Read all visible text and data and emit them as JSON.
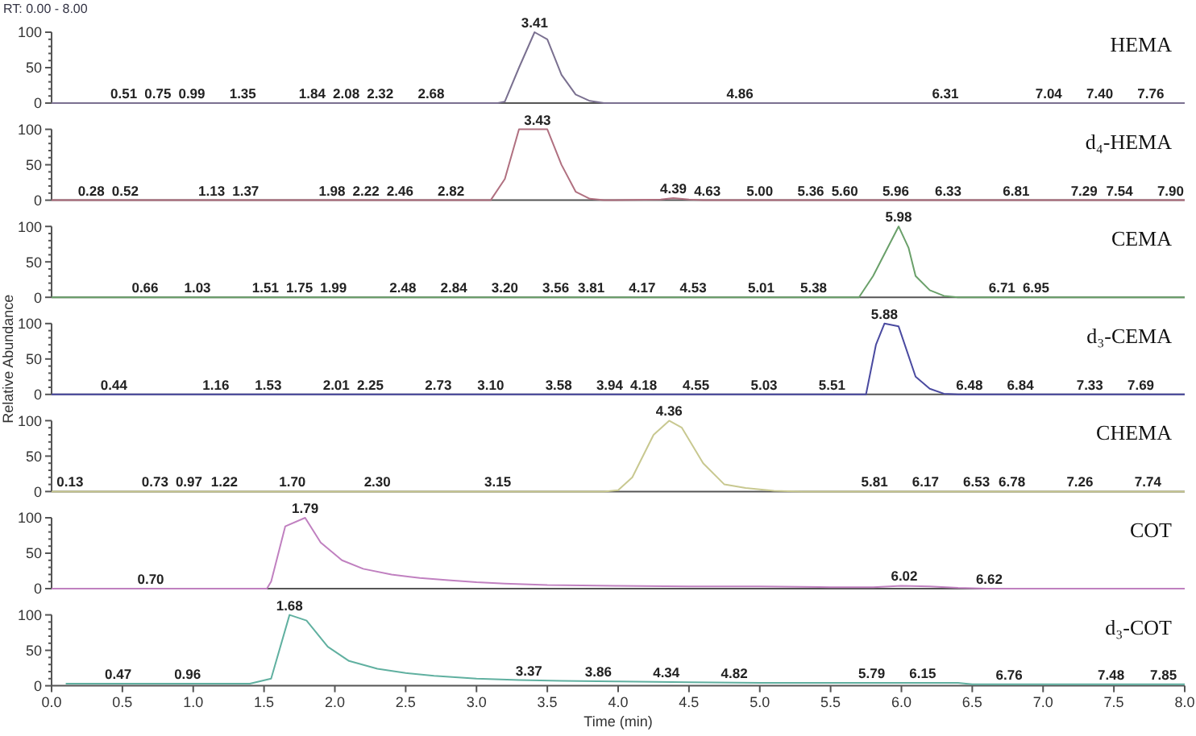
{
  "chart_data": [
    {
      "type": "line",
      "title": "HEMA",
      "xlim": [
        0,
        8
      ],
      "ylim": [
        0,
        100
      ],
      "tick_labels": "y",
      "yticks": [
        0,
        {
          "value": 10,
          "label": null
        },
        {
          "value": 20,
          "label": null
        },
        {
          "value": 30,
          "label": null
        },
        {
          "value": 40,
          "label": null
        },
        50,
        {
          "value": 60,
          "label": null
        },
        {
          "value": 70,
          "label": null
        },
        {
          "value": 80,
          "label": null
        },
        {
          "value": 90,
          "label": null
        },
        100
      ],
      "marker": "none",
      "line_style": "solid",
      "series": [
        {
          "color": "#7a7090",
          "x": [
            0,
            3.15,
            3.2,
            3.3,
            3.41,
            3.5,
            3.6,
            3.7,
            3.8,
            3.9,
            8
          ],
          "values": [
            0,
            0,
            2,
            50,
            100,
            90,
            40,
            12,
            3,
            0,
            0
          ]
        }
      ],
      "annotations": [
        "RT: 0.00 - 8.00",
        {
          "text": "0.51",
          "x": 0.51,
          "y": 0
        },
        {
          "text": "0.75",
          "x": 0.75,
          "y": 0
        },
        {
          "text": "0.99",
          "x": 0.99,
          "y": 0
        },
        {
          "text": "1.35",
          "x": 1.35,
          "y": 0
        },
        {
          "text": "1.84",
          "x": 1.84,
          "y": 0
        },
        {
          "text": "2.08",
          "x": 2.08,
          "y": 0
        },
        {
          "text": "2.32",
          "x": 2.32,
          "y": 0
        },
        {
          "text": "2.68",
          "x": 2.68,
          "y": 0
        },
        {
          "text": "3.41",
          "x": 3.41,
          "y": 100
        },
        {
          "text": "4.86",
          "x": 4.86,
          "y": 0
        },
        {
          "text": "6.31",
          "x": 6.31,
          "y": 0
        },
        {
          "text": "7.04",
          "x": 7.04,
          "y": 0
        },
        {
          "text": "7.40",
          "x": 7.4,
          "y": 0
        },
        {
          "text": "7.76",
          "x": 7.76,
          "y": 0
        }
      ]
    },
    {
      "type": "line",
      "title": "d₄-HEMA",
      "xlim": [
        0,
        8
      ],
      "ylim": [
        0,
        100
      ],
      "tick_labels": "y",
      "yticks": [
        0,
        {
          "value": 10,
          "label": null
        },
        {
          "value": 20,
          "label": null
        },
        {
          "value": 30,
          "label": null
        },
        {
          "value": 40,
          "label": null
        },
        50,
        {
          "value": 60,
          "label": null
        },
        {
          "value": 70,
          "label": null
        },
        {
          "value": 80,
          "label": null
        },
        {
          "value": 90,
          "label": null
        },
        100
      ],
      "marker": "none",
      "line_style": "solid",
      "series": [
        {
          "color": "#b07080",
          "x": [
            0,
            3.1,
            3.2,
            3.3,
            3.43,
            3.5,
            3.6,
            3.7,
            3.8,
            3.9,
            4.3,
            4.39,
            4.5,
            4.6,
            8
          ],
          "values": [
            0,
            0,
            30,
            100,
            100,
            100,
            50,
            12,
            2,
            0,
            1,
            3,
            1,
            0,
            0
          ]
        }
      ],
      "annotations": [
        {
          "text": "0.28",
          "x": 0.28,
          "y": 0
        },
        {
          "text": "0.52",
          "x": 0.52,
          "y": 0
        },
        {
          "text": "1.13",
          "x": 1.13,
          "y": 0
        },
        {
          "text": "1.37",
          "x": 1.37,
          "y": 0
        },
        {
          "text": "1.98",
          "x": 1.98,
          "y": 0
        },
        {
          "text": "2.22",
          "x": 2.22,
          "y": 0
        },
        {
          "text": "2.46",
          "x": 2.46,
          "y": 0
        },
        {
          "text": "2.82",
          "x": 2.82,
          "y": 0
        },
        {
          "text": "3.43",
          "x": 3.43,
          "y": 100
        },
        {
          "text": "4.39",
          "x": 4.39,
          "y": 3
        },
        {
          "text": "4.63",
          "x": 4.63,
          "y": 0
        },
        {
          "text": "5.00",
          "x": 5.0,
          "y": 0
        },
        {
          "text": "5.36",
          "x": 5.36,
          "y": 0
        },
        {
          "text": "5.60",
          "x": 5.6,
          "y": 0
        },
        {
          "text": "5.96",
          "x": 5.96,
          "y": 0
        },
        {
          "text": "6.33",
          "x": 6.33,
          "y": 0
        },
        {
          "text": "6.81",
          "x": 6.81,
          "y": 0
        },
        {
          "text": "7.29",
          "x": 7.29,
          "y": 0
        },
        {
          "text": "7.54",
          "x": 7.54,
          "y": 0
        },
        {
          "text": "7.90",
          "x": 7.9,
          "y": 0
        }
      ]
    },
    {
      "type": "line",
      "title": "CEMA",
      "xlim": [
        0,
        8
      ],
      "ylim": [
        0,
        100
      ],
      "tick_labels": "y",
      "yticks": [
        0,
        {
          "value": 10,
          "label": null
        },
        {
          "value": 20,
          "label": null
        },
        {
          "value": 30,
          "label": null
        },
        {
          "value": 40,
          "label": null
        },
        50,
        {
          "value": 60,
          "label": null
        },
        {
          "value": 70,
          "label": null
        },
        {
          "value": 80,
          "label": null
        },
        {
          "value": 90,
          "label": null
        },
        100
      ],
      "marker": "none",
      "line_style": "solid",
      "series": [
        {
          "color": "#6aa06a",
          "x": [
            0,
            5.7,
            5.8,
            5.98,
            6.05,
            6.1,
            6.2,
            6.3,
            6.4,
            8
          ],
          "values": [
            0,
            0,
            30,
            100,
            70,
            30,
            10,
            2,
            0,
            0
          ]
        }
      ],
      "annotations": [
        {
          "text": "0.66",
          "x": 0.66,
          "y": 0
        },
        {
          "text": "1.03",
          "x": 1.03,
          "y": 0
        },
        {
          "text": "1.51",
          "x": 1.51,
          "y": 0
        },
        {
          "text": "1.75",
          "x": 1.75,
          "y": 0
        },
        {
          "text": "1.99",
          "x": 1.99,
          "y": 0
        },
        {
          "text": "2.48",
          "x": 2.48,
          "y": 0
        },
        {
          "text": "2.84",
          "x": 2.84,
          "y": 0
        },
        {
          "text": "3.20",
          "x": 3.2,
          "y": 0
        },
        {
          "text": "3.56",
          "x": 3.56,
          "y": 0
        },
        {
          "text": "3.81",
          "x": 3.81,
          "y": 0
        },
        {
          "text": "4.17",
          "x": 4.17,
          "y": 0
        },
        {
          "text": "4.53",
          "x": 4.53,
          "y": 0
        },
        {
          "text": "5.01",
          "x": 5.01,
          "y": 0
        },
        {
          "text": "5.38",
          "x": 5.38,
          "y": 0
        },
        {
          "text": "5.98",
          "x": 5.98,
          "y": 100
        },
        {
          "text": "6.71",
          "x": 6.71,
          "y": 0
        },
        {
          "text": "6.95",
          "x": 6.95,
          "y": 0
        }
      ]
    },
    {
      "type": "line",
      "title": "d₃-CEMA",
      "ylabel": "Relative Abundance",
      "xlim": [
        0,
        8
      ],
      "ylim": [
        0,
        100
      ],
      "tick_labels": "y",
      "yticks": [
        0,
        {
          "value": 10,
          "label": null
        },
        {
          "value": 20,
          "label": null
        },
        {
          "value": 30,
          "label": null
        },
        {
          "value": 40,
          "label": null
        },
        50,
        {
          "value": 60,
          "label": null
        },
        {
          "value": 70,
          "label": null
        },
        {
          "value": 80,
          "label": null
        },
        {
          "value": 90,
          "label": null
        },
        100
      ],
      "marker": "none",
      "line_style": "solid",
      "series": [
        {
          "color": "#4a4aa0",
          "x": [
            0,
            5.75,
            5.82,
            5.88,
            5.98,
            6.1,
            6.2,
            6.3,
            6.4,
            8
          ],
          "values": [
            0,
            0,
            70,
            100,
            96,
            25,
            8,
            1,
            0,
            0
          ]
        }
      ],
      "annotations": [
        {
          "text": "0.44",
          "x": 0.44,
          "y": 0
        },
        {
          "text": "1.16",
          "x": 1.16,
          "y": 0
        },
        {
          "text": "1.53",
          "x": 1.53,
          "y": 0
        },
        {
          "text": "2.01",
          "x": 2.01,
          "y": 0
        },
        {
          "text": "2.25",
          "x": 2.25,
          "y": 0
        },
        {
          "text": "2.73",
          "x": 2.73,
          "y": 0
        },
        {
          "text": "3.10",
          "x": 3.1,
          "y": 0
        },
        {
          "text": "3.58",
          "x": 3.58,
          "y": 0
        },
        {
          "text": "3.94",
          "x": 3.94,
          "y": 0
        },
        {
          "text": "4.18",
          "x": 4.18,
          "y": 0
        },
        {
          "text": "4.55",
          "x": 4.55,
          "y": 0
        },
        {
          "text": "5.03",
          "x": 5.03,
          "y": 0
        },
        {
          "text": "5.51",
          "x": 5.51,
          "y": 0
        },
        {
          "text": "5.88",
          "x": 5.88,
          "y": 100
        },
        {
          "text": "6.48",
          "x": 6.48,
          "y": 0
        },
        {
          "text": "6.84",
          "x": 6.84,
          "y": 0
        },
        {
          "text": "7.33",
          "x": 7.33,
          "y": 0
        },
        {
          "text": "7.69",
          "x": 7.69,
          "y": 0
        }
      ]
    },
    {
      "type": "line",
      "title": "CHEMA",
      "xlim": [
        0,
        8
      ],
      "ylim": [
        0,
        100
      ],
      "tick_labels": "y",
      "yticks": [
        0,
        {
          "value": 10,
          "label": null
        },
        {
          "value": 20,
          "label": null
        },
        {
          "value": 30,
          "label": null
        },
        {
          "value": 40,
          "label": null
        },
        50,
        {
          "value": 60,
          "label": null
        },
        {
          "value": 70,
          "label": null
        },
        {
          "value": 80,
          "label": null
        },
        {
          "value": 90,
          "label": null
        },
        100
      ],
      "marker": "none",
      "line_style": "solid",
      "series": [
        {
          "color": "#c8c890",
          "x": [
            0,
            3.9,
            4.0,
            4.1,
            4.25,
            4.36,
            4.45,
            4.6,
            4.75,
            4.9,
            5.1,
            5.3,
            8
          ],
          "values": [
            0,
            0,
            2,
            20,
            80,
            100,
            90,
            40,
            10,
            5,
            1,
            0,
            0
          ]
        }
      ],
      "annotations": [
        {
          "text": "0.13",
          "x": 0.13,
          "y": 0
        },
        {
          "text": "0.73",
          "x": 0.73,
          "y": 0
        },
        {
          "text": "0.97",
          "x": 0.97,
          "y": 0
        },
        {
          "text": "1.22",
          "x": 1.22,
          "y": 0
        },
        {
          "text": "1.70",
          "x": 1.7,
          "y": 0
        },
        {
          "text": "2.30",
          "x": 2.3,
          "y": 0
        },
        {
          "text": "3.15",
          "x": 3.15,
          "y": 0
        },
        {
          "text": "4.36",
          "x": 4.36,
          "y": 100
        },
        {
          "text": "5.81",
          "x": 5.81,
          "y": 0
        },
        {
          "text": "6.17",
          "x": 6.17,
          "y": 0
        },
        {
          "text": "6.53",
          "x": 6.53,
          "y": 0
        },
        {
          "text": "6.78",
          "x": 6.78,
          "y": 0
        },
        {
          "text": "7.26",
          "x": 7.26,
          "y": 0
        },
        {
          "text": "7.74",
          "x": 7.74,
          "y": 0
        }
      ]
    },
    {
      "type": "line",
      "title": "COT",
      "xlim": [
        0,
        8
      ],
      "ylim": [
        0,
        100
      ],
      "tick_labels": "y",
      "yticks": [
        0,
        {
          "value": 10,
          "label": null
        },
        {
          "value": 20,
          "label": null
        },
        {
          "value": 30,
          "label": null
        },
        {
          "value": 40,
          "label": null
        },
        50,
        {
          "value": 60,
          "label": null
        },
        {
          "value": 70,
          "label": null
        },
        {
          "value": 80,
          "label": null
        },
        {
          "value": 90,
          "label": null
        },
        100
      ],
      "marker": "none",
      "line_style": "solid",
      "series": [
        {
          "color": "#c080c0",
          "x": [
            0,
            1.52,
            1.55,
            1.65,
            1.79,
            1.9,
            2.05,
            2.2,
            2.4,
            2.6,
            2.8,
            3.0,
            3.2,
            3.5,
            4.0,
            4.5,
            5.0,
            5.5,
            5.8,
            6.0,
            6.2,
            6.4,
            6.6,
            8
          ],
          "values": [
            0,
            0,
            10,
            88,
            100,
            65,
            40,
            28,
            20,
            15,
            12,
            9,
            7,
            5,
            4,
            3,
            3,
            2,
            2,
            4,
            3,
            1,
            0,
            0
          ]
        }
      ],
      "annotations": [
        {
          "text": "0.70",
          "x": 0.7,
          "y": 0
        },
        {
          "text": "1.79",
          "x": 1.79,
          "y": 100
        },
        {
          "text": "6.02",
          "x": 6.02,
          "y": 4
        },
        {
          "text": "6.62",
          "x": 6.62,
          "y": 0
        }
      ]
    },
    {
      "type": "line",
      "title": "d₃-COT",
      "xlabel": "Time (min)",
      "xlim": [
        0,
        8
      ],
      "ylim": [
        0,
        100
      ],
      "xticks": [
        {
          "value": 0,
          "label": "0.0"
        },
        {
          "value": 0.5,
          "label": "0.5"
        },
        {
          "value": 1,
          "label": "1.0"
        },
        {
          "value": 1.5,
          "label": "1.5"
        },
        {
          "value": 2,
          "label": "2.0"
        },
        {
          "value": 2.5,
          "label": "2.5"
        },
        {
          "value": 3,
          "label": "3.0"
        },
        {
          "value": 3.5,
          "label": "3.5"
        },
        {
          "value": 4,
          "label": "4.0"
        },
        {
          "value": 4.5,
          "label": "4.5"
        },
        {
          "value": 5,
          "label": "5.0"
        },
        {
          "value": 5.5,
          "label": "5.5"
        },
        {
          "value": 6,
          "label": "6.0"
        },
        {
          "value": 6.5,
          "label": "6.5"
        },
        {
          "value": 7,
          "label": "7.0"
        },
        {
          "value": 7.5,
          "label": "7.5"
        },
        {
          "value": 8,
          "label": "8.0"
        }
      ],
      "yticks": [
        0,
        {
          "value": 10,
          "label": null
        },
        {
          "value": 20,
          "label": null
        },
        {
          "value": 30,
          "label": null
        },
        {
          "value": 40,
          "label": null
        },
        50,
        {
          "value": 60,
          "label": null
        },
        {
          "value": 70,
          "label": null
        },
        {
          "value": 80,
          "label": null
        },
        {
          "value": 90,
          "label": null
        },
        100
      ],
      "marker": "none",
      "line_style": "solid",
      "series": [
        {
          "color": "#60b0a0",
          "x": [
            0.1,
            1.4,
            1.55,
            1.68,
            1.8,
            1.95,
            2.1,
            2.3,
            2.5,
            2.7,
            3.0,
            3.3,
            3.6,
            4.0,
            4.5,
            5.0,
            5.5,
            6.0,
            6.4,
            6.5,
            8
          ],
          "values": [
            3,
            3,
            10,
            100,
            92,
            55,
            35,
            24,
            18,
            14,
            10,
            8,
            7,
            6,
            5,
            4,
            4,
            4,
            4,
            2,
            2
          ]
        }
      ],
      "annotations": [
        {
          "text": "0.47",
          "x": 0.47,
          "y": 3
        },
        {
          "text": "0.96",
          "x": 0.96,
          "y": 3
        },
        {
          "text": "1.68",
          "x": 1.68,
          "y": 100
        },
        {
          "text": "3.37",
          "x": 3.37,
          "y": 8
        },
        {
          "text": "3.86",
          "x": 3.86,
          "y": 6
        },
        {
          "text": "4.34",
          "x": 4.34,
          "y": 5
        },
        {
          "text": "4.82",
          "x": 4.82,
          "y": 4
        },
        {
          "text": "5.79",
          "x": 5.79,
          "y": 4
        },
        {
          "text": "6.15",
          "x": 6.15,
          "y": 4
        },
        {
          "text": "6.76",
          "x": 6.76,
          "y": 2
        },
        {
          "text": "7.48",
          "x": 7.48,
          "y": 2
        },
        {
          "text": "7.85",
          "x": 7.85,
          "y": 2
        }
      ]
    }
  ]
}
